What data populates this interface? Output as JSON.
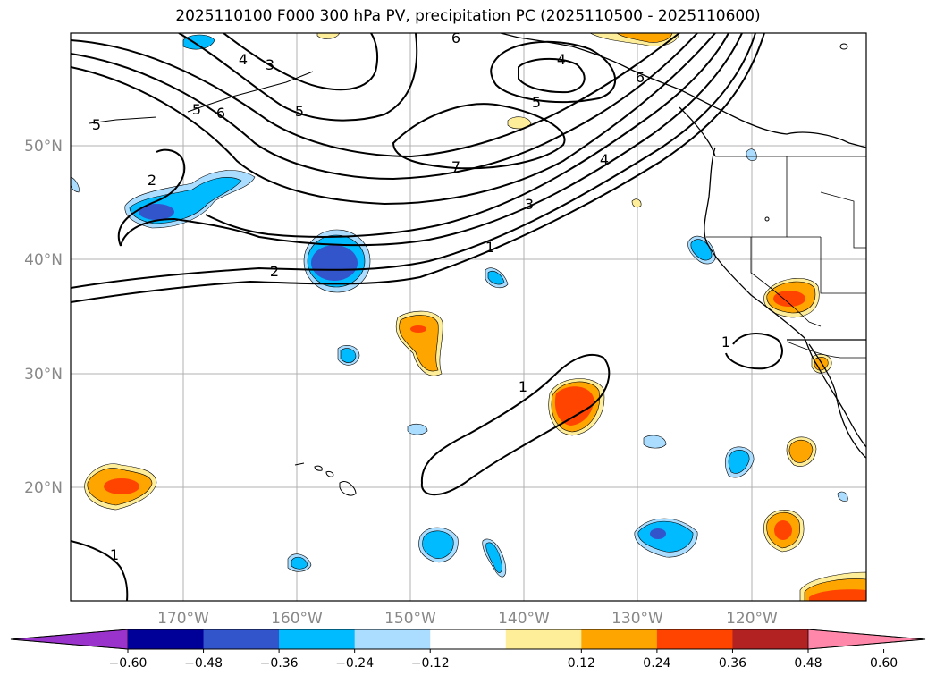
{
  "title": "2025110100 F000 300 hPa PV, precipitation PC (2025110500 - 2025110600)",
  "map": {
    "lat_labels": [
      "50°N",
      "40°N",
      "30°N",
      "20°N"
    ],
    "lon_labels": [
      "170°W",
      "160°W",
      "150°W",
      "140°W",
      "130°W",
      "120°W"
    ]
  },
  "contours": {
    "labels": [
      "6",
      "4",
      "3",
      "5",
      "6",
      "5",
      "4",
      "5",
      "2",
      "6",
      "5",
      "7",
      "4",
      "3",
      "2",
      "1",
      "1",
      "1",
      "1"
    ]
  },
  "colorbar": {
    "colors": [
      "#9933cc",
      "#000099",
      "#3355cc",
      "#00bbff",
      "#aaddff",
      "#ffffff",
      "#ffee99",
      "#ffa500",
      "#ff4400",
      "#b22222",
      "#ff88aa"
    ],
    "tick_labels": [
      "−0.60",
      "−0.48",
      "−0.36",
      "−0.24",
      "−0.12",
      "0.12",
      "0.24",
      "0.36",
      "0.48",
      "0.60"
    ]
  }
}
